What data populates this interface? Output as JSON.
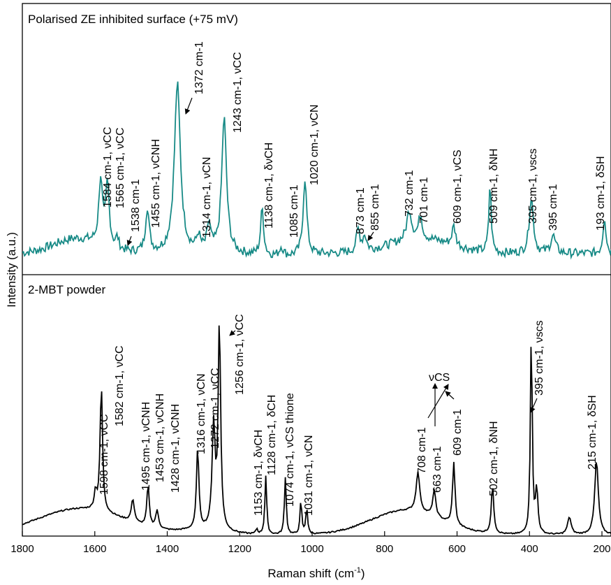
{
  "chart_data": {
    "type": "line",
    "xlabel": "Raman shift (cm-1)",
    "xlabel_parts": {
      "main": "Raman shift (cm",
      "sup": "-1",
      "close": ")"
    },
    "ylabel": "Intensity (a.u.)",
    "xlim": [
      1800,
      175
    ],
    "x_reversed": true,
    "x_ticks": [
      1800,
      1600,
      1400,
      1200,
      1000,
      800,
      600,
      400,
      200
    ],
    "grid": false,
    "panels": [
      {
        "name": "Polarised ZE inhibited surface (+75 mV)",
        "color": "#178a86",
        "baseline": 0.2,
        "peaks": [
          {
            "x": 1584,
            "h": 0.44,
            "w": 6
          },
          {
            "x": 1565,
            "h": 0.42,
            "w": 6
          },
          {
            "x": 1538,
            "h": 0.07,
            "w": 5
          },
          {
            "x": 1455,
            "h": 0.3,
            "w": 6
          },
          {
            "x": 1372,
            "h": 1.15,
            "w": 10
          },
          {
            "x": 1314,
            "h": 0.1,
            "w": 6
          },
          {
            "x": 1285,
            "h": 0.18,
            "w": 6
          },
          {
            "x": 1243,
            "h": 0.92,
            "w": 8
          },
          {
            "x": 1138,
            "h": 0.32,
            "w": 5
          },
          {
            "x": 1085,
            "h": 0.06,
            "w": 6
          },
          {
            "x": 1020,
            "h": 0.52,
            "w": 6
          },
          {
            "x": 873,
            "h": 0.15,
            "w": 6
          },
          {
            "x": 855,
            "h": 0.1,
            "w": 6
          },
          {
            "x": 732,
            "h": 0.2,
            "w": 8
          },
          {
            "x": 701,
            "h": 0.16,
            "w": 6
          },
          {
            "x": 609,
            "h": 0.13,
            "w": 6
          },
          {
            "x": 509,
            "h": 0.46,
            "w": 4
          },
          {
            "x": 395,
            "h": 0.38,
            "w": 7
          },
          {
            "x": 335,
            "h": 0.12,
            "w": 8
          },
          {
            "x": 193,
            "h": 0.25,
            "w": 5
          }
        ],
        "labels": [
          {
            "text": "1584 cm-1, νCC"
          },
          {
            "text": "1565 cm-1, νCC"
          },
          {
            "text": "1538 cm-1"
          },
          {
            "text": "1455 cm-1, νCNH"
          },
          {
            "text": "1372 cm-1"
          },
          {
            "text": "1314 cm-1, νCN"
          },
          {
            "text": "1243 cm-1, νCC"
          },
          {
            "text": "1138 cm-1, δνCH"
          },
          {
            "text": "1085 cm-1"
          },
          {
            "text": "1020 cm-1, νCN"
          },
          {
            "text": "873 cm-1"
          },
          {
            "text": "855 cm-1"
          },
          {
            "text": "732 cm-1"
          },
          {
            "text": "701 cm-1"
          },
          {
            "text": "609 cm-1, νCS"
          },
          {
            "text": "509 cm-1, δNH"
          },
          {
            "text": "395 cm-1, νscs"
          },
          {
            "text": "395 cm-1"
          },
          {
            "text": "193 cm-1, δSH"
          }
        ]
      },
      {
        "name": "2-MBT powder",
        "color": "#000000",
        "peaks": [
          {
            "x": 1598,
            "h": 0.2,
            "w": 4
          },
          {
            "x": 1582,
            "h": 1.45,
            "w": 4
          },
          {
            "x": 1495,
            "h": 0.26,
            "w": 5
          },
          {
            "x": 1453,
            "h": 0.47,
            "w": 4
          },
          {
            "x": 1428,
            "h": 0.2,
            "w": 5
          },
          {
            "x": 1316,
            "h": 0.93,
            "w": 4
          },
          {
            "x": 1272,
            "h": 1.18,
            "w": 5
          },
          {
            "x": 1256,
            "h": 2.38,
            "w": 4
          },
          {
            "x": 1153,
            "h": 0.06,
            "w": 3
          },
          {
            "x": 1128,
            "h": 0.67,
            "w": 3
          },
          {
            "x": 1074,
            "h": 0.66,
            "w": 3
          },
          {
            "x": 1031,
            "h": 0.38,
            "w": 3
          },
          {
            "x": 1015,
            "h": 0.3,
            "w": 3
          },
          {
            "x": 708,
            "h": 0.45,
            "w": 6
          },
          {
            "x": 663,
            "h": 0.3,
            "w": 5
          },
          {
            "x": 609,
            "h": 0.72,
            "w": 4
          },
          {
            "x": 502,
            "h": 0.55,
            "w": 4
          },
          {
            "x": 395,
            "h": 2.35,
            "w": 3
          },
          {
            "x": 380,
            "h": 0.5,
            "w": 4
          },
          {
            "x": 290,
            "h": 0.2,
            "w": 6
          },
          {
            "x": 215,
            "h": 0.85,
            "w": 6
          }
        ],
        "labels": [
          {
            "text": "1598 cm-1, νCC"
          },
          {
            "text": "1582 cm-1, νCC"
          },
          {
            "text": "1495 cm-1, νCNH"
          },
          {
            "text": "1453 cm-1, νCNH"
          },
          {
            "text": "1428 cm-1, νCNH"
          },
          {
            "text": "1316 cm-1, νCN"
          },
          {
            "text": "1272 cm-1, νCC"
          },
          {
            "text": "1256 cm-1, νCC"
          },
          {
            "text": "1153 cm-1, δνCH"
          },
          {
            "text": "1128 cm-1, δCH"
          },
          {
            "text": "1074 cm-1, νCS thione"
          },
          {
            "text": "1031 cm-1, νCN"
          },
          {
            "text": "708 cm-1"
          },
          {
            "text": "663 cm-1"
          },
          {
            "text": "609 cm-1"
          },
          {
            "text": "νCS"
          },
          {
            "text": "502 cm-1, δNH"
          },
          {
            "text": "395 cm-1, νscs"
          },
          {
            "text": "215 cm-1, δSH"
          }
        ]
      }
    ]
  }
}
